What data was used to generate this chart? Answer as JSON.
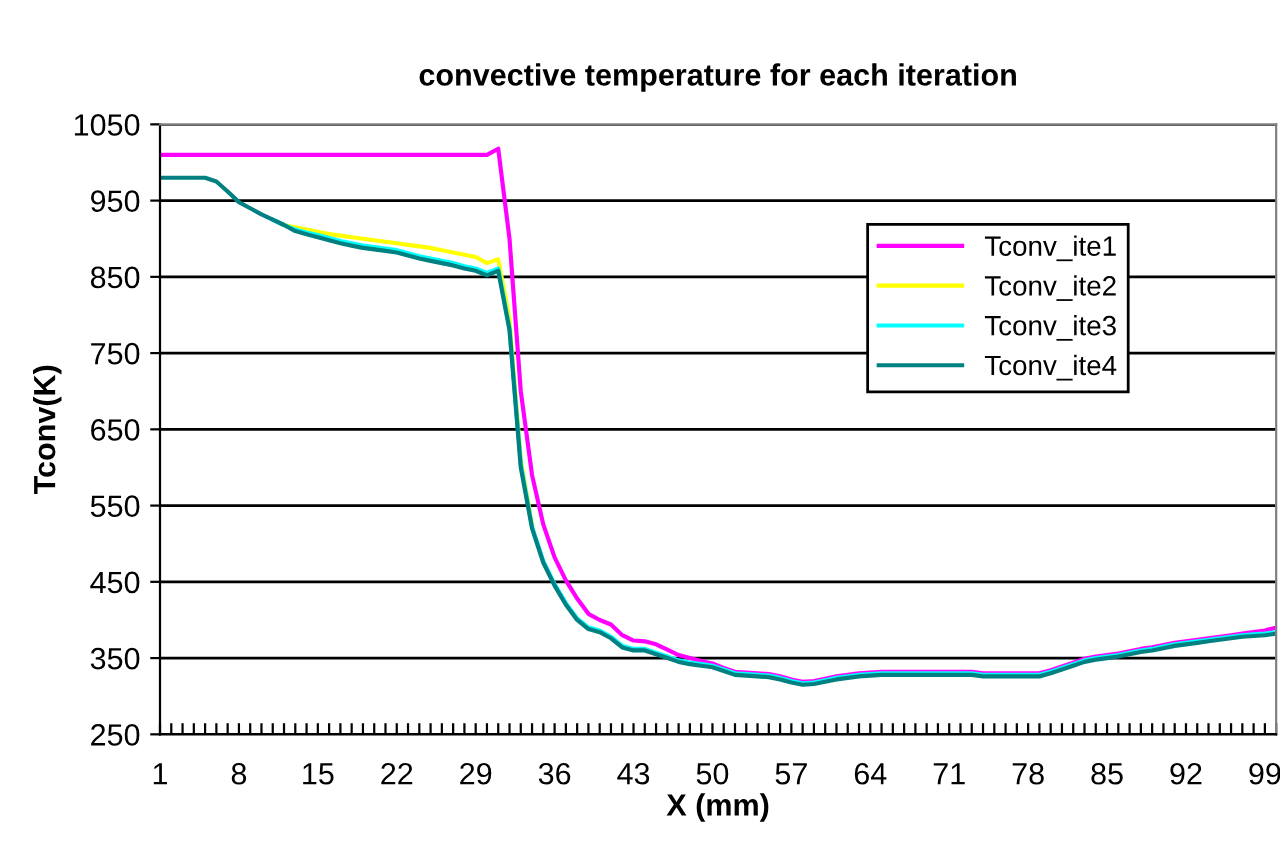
{
  "chart_data": {
    "type": "line",
    "title": "convective temperature for each iteration",
    "xlabel": "X (mm)",
    "ylabel": "Tconv(K)",
    "categories": [
      "1",
      null,
      null,
      null,
      null,
      null,
      null,
      "8",
      null,
      null,
      null,
      null,
      null,
      null,
      "15",
      null,
      null,
      null,
      null,
      null,
      null,
      "22",
      null,
      null,
      null,
      null,
      null,
      null,
      "29",
      null,
      null,
      null,
      null,
      null,
      null,
      "36",
      null,
      null,
      null,
      null,
      null,
      null,
      "43",
      null,
      null,
      null,
      null,
      null,
      null,
      "50",
      null,
      null,
      null,
      null,
      null,
      null,
      "57",
      null,
      null,
      null,
      null,
      null,
      null,
      "64",
      null,
      null,
      null,
      null,
      null,
      null,
      "71",
      null,
      null,
      null,
      null,
      null,
      null,
      "78",
      null,
      null,
      null,
      null,
      null,
      null,
      "85",
      null,
      null,
      null,
      null,
      null,
      null,
      "92",
      null,
      null,
      null,
      null,
      null,
      null,
      "99",
      null
    ],
    "series": [
      {
        "name": "Tconv_ite1",
        "color": "#ff00ff",
        "values": [
          1010,
          1010,
          1010,
          1010,
          1010,
          1010,
          1010,
          1010,
          1010,
          1010,
          1010,
          1010,
          1010,
          1010,
          1010,
          1010,
          1010,
          1010,
          1010,
          1010,
          1010,
          1010,
          1010,
          1010,
          1010,
          1010,
          1010,
          1010,
          1010,
          1010,
          1018,
          900,
          700,
          590,
          525,
          482,
          452,
          428,
          408,
          400,
          394,
          380,
          373,
          372,
          368,
          361,
          354,
          350,
          346,
          343,
          337,
          332,
          331,
          330,
          329,
          326,
          322,
          319,
          320,
          323,
          326,
          328,
          330,
          331,
          332,
          332,
          332,
          332,
          332,
          332,
          332,
          332,
          332,
          330,
          330,
          330,
          330,
          330,
          330,
          334,
          339,
          344,
          349,
          352,
          354,
          356,
          359,
          362,
          364,
          367,
          370,
          372,
          374,
          376,
          378,
          380,
          382,
          384,
          386,
          390
        ]
      },
      {
        "name": "Tconv_ite2",
        "color": "#ffff00",
        "values": [
          null,
          null,
          null,
          null,
          null,
          null,
          null,
          null,
          null,
          null,
          null,
          918,
          915,
          912,
          909,
          906,
          904,
          902,
          900,
          898,
          896,
          894,
          892,
          890,
          888,
          885,
          882,
          879,
          876,
          868,
          873,
          795,
          610,
          525,
          null,
          null,
          null,
          null,
          null,
          null,
          null,
          null,
          null,
          null,
          null,
          null,
          null,
          null,
          null,
          null,
          null,
          null,
          null,
          null,
          null,
          null,
          null,
          null,
          null,
          null,
          null,
          null,
          null,
          null,
          null,
          null,
          null,
          null,
          null,
          null,
          null,
          null,
          null,
          null,
          null,
          null,
          null,
          null,
          null,
          null,
          null,
          null,
          null,
          null,
          null,
          null,
          null,
          null,
          null,
          null,
          null,
          null,
          null,
          null,
          null,
          null,
          null,
          null,
          null,
          null
        ]
      },
      {
        "name": "Tconv_ite3",
        "color": "#00ffff",
        "values": [
          null,
          null,
          null,
          null,
          null,
          null,
          null,
          null,
          null,
          null,
          925,
          918,
          912,
          908,
          905,
          901,
          897,
          894,
          891,
          889,
          887,
          885,
          881,
          877,
          874,
          871,
          868,
          864,
          861,
          855,
          861,
          783,
          605,
          522,
          477,
          447,
          422,
          402,
          390,
          386,
          378,
          366,
          362,
          362,
          357,
          352,
          347,
          344,
          342,
          340,
          335,
          330,
          329,
          328,
          327,
          324,
          320,
          317,
          318,
          321,
          324,
          326,
          328,
          329,
          330,
          330,
          330,
          330,
          330,
          330,
          330,
          330,
          330,
          328,
          328,
          328,
          328,
          328,
          328,
          332,
          337,
          342,
          347,
          350,
          352,
          354,
          357,
          360,
          362,
          365,
          368,
          370,
          372,
          374,
          376,
          378,
          380,
          381,
          382,
          384
        ]
      },
      {
        "name": "Tconv_ite4",
        "color": "#008080",
        "values": [
          980,
          980,
          980,
          980,
          980,
          975,
          962,
          948,
          940,
          932,
          925,
          918,
          910,
          906,
          902,
          898,
          894,
          891,
          888,
          886,
          884,
          882,
          878,
          874,
          871,
          868,
          865,
          861,
          858,
          852,
          858,
          780,
          600,
          520,
          475,
          445,
          420,
          400,
          388,
          384,
          376,
          364,
          360,
          360,
          355,
          350,
          345,
          342,
          340,
          338,
          333,
          328,
          327,
          326,
          325,
          322,
          318,
          315,
          316,
          319,
          322,
          324,
          326,
          327,
          328,
          328,
          328,
          328,
          328,
          328,
          328,
          328,
          328,
          326,
          326,
          326,
          326,
          326,
          326,
          330,
          335,
          340,
          345,
          348,
          350,
          352,
          355,
          358,
          360,
          363,
          366,
          368,
          370,
          372,
          374,
          376,
          378,
          379,
          380,
          382
        ]
      }
    ],
    "ylim": [
      250,
      1050
    ],
    "yticks": [
      250,
      350,
      450,
      550,
      650,
      750,
      850,
      950,
      1050
    ],
    "grid": "y",
    "legend": "right"
  }
}
